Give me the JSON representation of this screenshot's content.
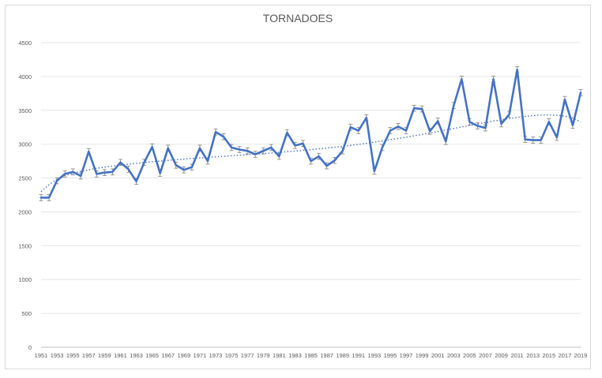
{
  "chart_data": {
    "type": "line",
    "title": "TORNADOES",
    "xlabel": "",
    "ylabel": "",
    "ylim": [
      0,
      4500
    ],
    "yticks": [
      0,
      500,
      1000,
      1500,
      2000,
      2500,
      3000,
      3500,
      4000,
      4500
    ],
    "grid": true,
    "error_bars": true,
    "x": [
      1951,
      1952,
      1953,
      1954,
      1955,
      1956,
      1957,
      1958,
      1959,
      1960,
      1961,
      1962,
      1963,
      1964,
      1965,
      1966,
      1967,
      1968,
      1969,
      1970,
      1971,
      1972,
      1973,
      1974,
      1975,
      1976,
      1977,
      1978,
      1979,
      1980,
      1981,
      1982,
      1983,
      1984,
      1985,
      1986,
      1987,
      1988,
      1989,
      1990,
      1991,
      1992,
      1993,
      1994,
      1995,
      1996,
      1997,
      1998,
      1999,
      2000,
      2001,
      2002,
      2003,
      2004,
      2005,
      2006,
      2007,
      2008,
      2009,
      2010,
      2011,
      2012,
      2013,
      2014,
      2015,
      2016,
      2017,
      2018,
      2019
    ],
    "x_tick_labels": [
      "1951",
      "1953",
      "1955",
      "1957",
      "1959",
      "1961",
      "1963",
      "1965",
      "1967",
      "1969",
      "1971",
      "1973",
      "1975",
      "1977",
      "1979",
      "1981",
      "1983",
      "1985",
      "1987",
      "1989",
      "1991",
      "1993",
      "1995",
      "1997",
      "1999",
      "2001",
      "2003",
      "2005",
      "2007",
      "2009",
      "2011",
      "2013",
      "2015",
      "2017",
      "2019"
    ],
    "series": [
      {
        "color": "#4472c4",
        "values": [
          2210,
          2210,
          2460,
          2560,
          2590,
          2530,
          2890,
          2560,
          2580,
          2590,
          2730,
          2630,
          2450,
          2730,
          2960,
          2570,
          2940,
          2690,
          2620,
          2660,
          2940,
          2750,
          3180,
          3110,
          2950,
          2920,
          2900,
          2850,
          2900,
          2950,
          2820,
          3170,
          2980,
          3010,
          2750,
          2820,
          2680,
          2760,
          2900,
          3250,
          3200,
          3390,
          2600,
          2950,
          3200,
          3260,
          3200,
          3530,
          3520,
          3190,
          3340,
          3040,
          3570,
          3960,
          3330,
          3270,
          3240,
          3960,
          3300,
          3440,
          4100,
          3070,
          3060,
          3060,
          3330,
          3100,
          3660,
          3280,
          3760
        ],
        "error": 45
      },
      {
        "style": "dotted-trendline",
        "color": "#4472c4",
        "values": [
          2300,
          2400,
          2480,
          2535,
          2570,
          2598,
          2622,
          2643,
          2660,
          2676,
          2690,
          2703,
          2716,
          2728,
          2739,
          2750,
          2760,
          2770,
          2779,
          2788,
          2797,
          2805,
          2813,
          2821,
          2829,
          2837,
          2845,
          2853,
          2861,
          2870,
          2879,
          2888,
          2898,
          2908,
          2919,
          2930,
          2942,
          2955,
          2968,
          2982,
          2997,
          3013,
          3030,
          3047,
          3065,
          3084,
          3103,
          3123,
          3144,
          3165,
          3187,
          3209,
          3231,
          3254,
          3276,
          3298,
          3319,
          3340,
          3360,
          3378,
          3395,
          3410,
          3422,
          3430,
          3433,
          3428,
          3413,
          3385,
          3330
        ]
      }
    ]
  }
}
